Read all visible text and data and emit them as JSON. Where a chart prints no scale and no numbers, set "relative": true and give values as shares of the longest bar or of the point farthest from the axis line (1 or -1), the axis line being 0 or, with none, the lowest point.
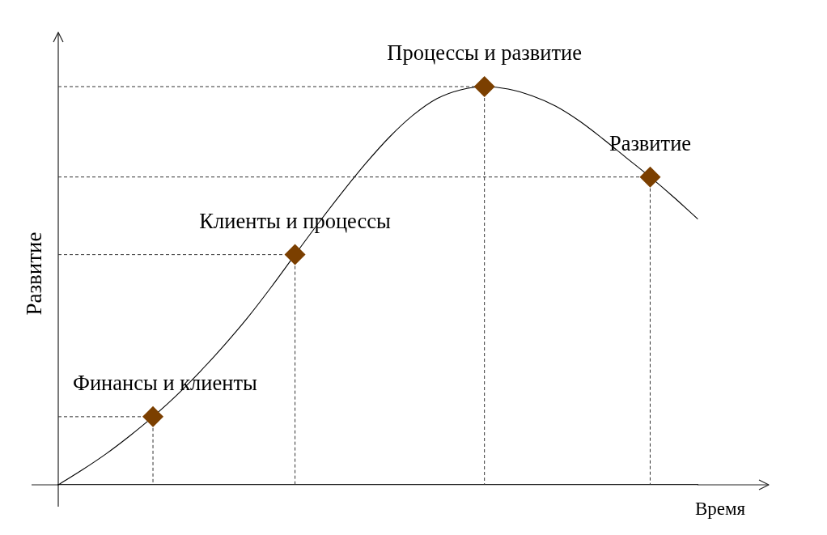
{
  "chart_data": {
    "type": "line",
    "xlabel": "Время",
    "ylabel": "Развитие",
    "relative": true,
    "legend": false,
    "categories": [
      null,
      null,
      null,
      null,
      null,
      null,
      null,
      null,
      null,
      null,
      null,
      null,
      null,
      null,
      null,
      null,
      null,
      null,
      null,
      null,
      null,
      null,
      null,
      null,
      null,
      null,
      null,
      null
    ],
    "series": [
      {
        "color": "#000000",
        "values": [
          0,
          0.037,
          0.077,
          0.122,
          0.171,
          0.225,
          0.285,
          0.35,
          0.42,
          0.497,
          0.578,
          0.658,
          0.735,
          0.808,
          0.874,
          0.929,
          0.97,
          0.992,
          1,
          0.994,
          0.977,
          0.951,
          0.914,
          0.869,
          0.821,
          0.773,
          0.722,
          0.668
        ]
      },
      {
        "name": "Финансы и клиенты",
        "color": "#7b3f00",
        "marker": "diamond",
        "values": [
          null,
          null,
          null,
          null,
          0.171,
          null,
          null,
          null,
          null,
          null,
          null,
          null,
          null,
          null,
          null,
          null,
          null,
          null,
          null,
          null,
          null,
          null,
          null,
          null,
          null,
          null,
          null,
          null
        ]
      },
      {
        "name": "Клиенты и процессы",
        "color": "#7b3f00",
        "marker": "diamond",
        "values": [
          null,
          null,
          null,
          null,
          null,
          null,
          null,
          null,
          null,
          null,
          0.578,
          null,
          null,
          null,
          null,
          null,
          null,
          null,
          null,
          null,
          null,
          null,
          null,
          null,
          null,
          null,
          null,
          null
        ]
      },
      {
        "name": "Процессы и развитие",
        "color": "#7b3f00",
        "marker": "diamond",
        "values": [
          null,
          null,
          null,
          null,
          null,
          null,
          null,
          null,
          null,
          null,
          null,
          null,
          null,
          null,
          null,
          null,
          null,
          null,
          1,
          null,
          null,
          null,
          null,
          null,
          null,
          null,
          null,
          null
        ]
      },
      {
        "name": "Развитие",
        "color": "#7b3f00",
        "marker": "diamond",
        "values": [
          null,
          null,
          null,
          null,
          null,
          null,
          null,
          null,
          null,
          null,
          null,
          null,
          null,
          null,
          null,
          null,
          null,
          null,
          null,
          null,
          null,
          null,
          null,
          null,
          null,
          0.773,
          null,
          null
        ]
      }
    ]
  }
}
